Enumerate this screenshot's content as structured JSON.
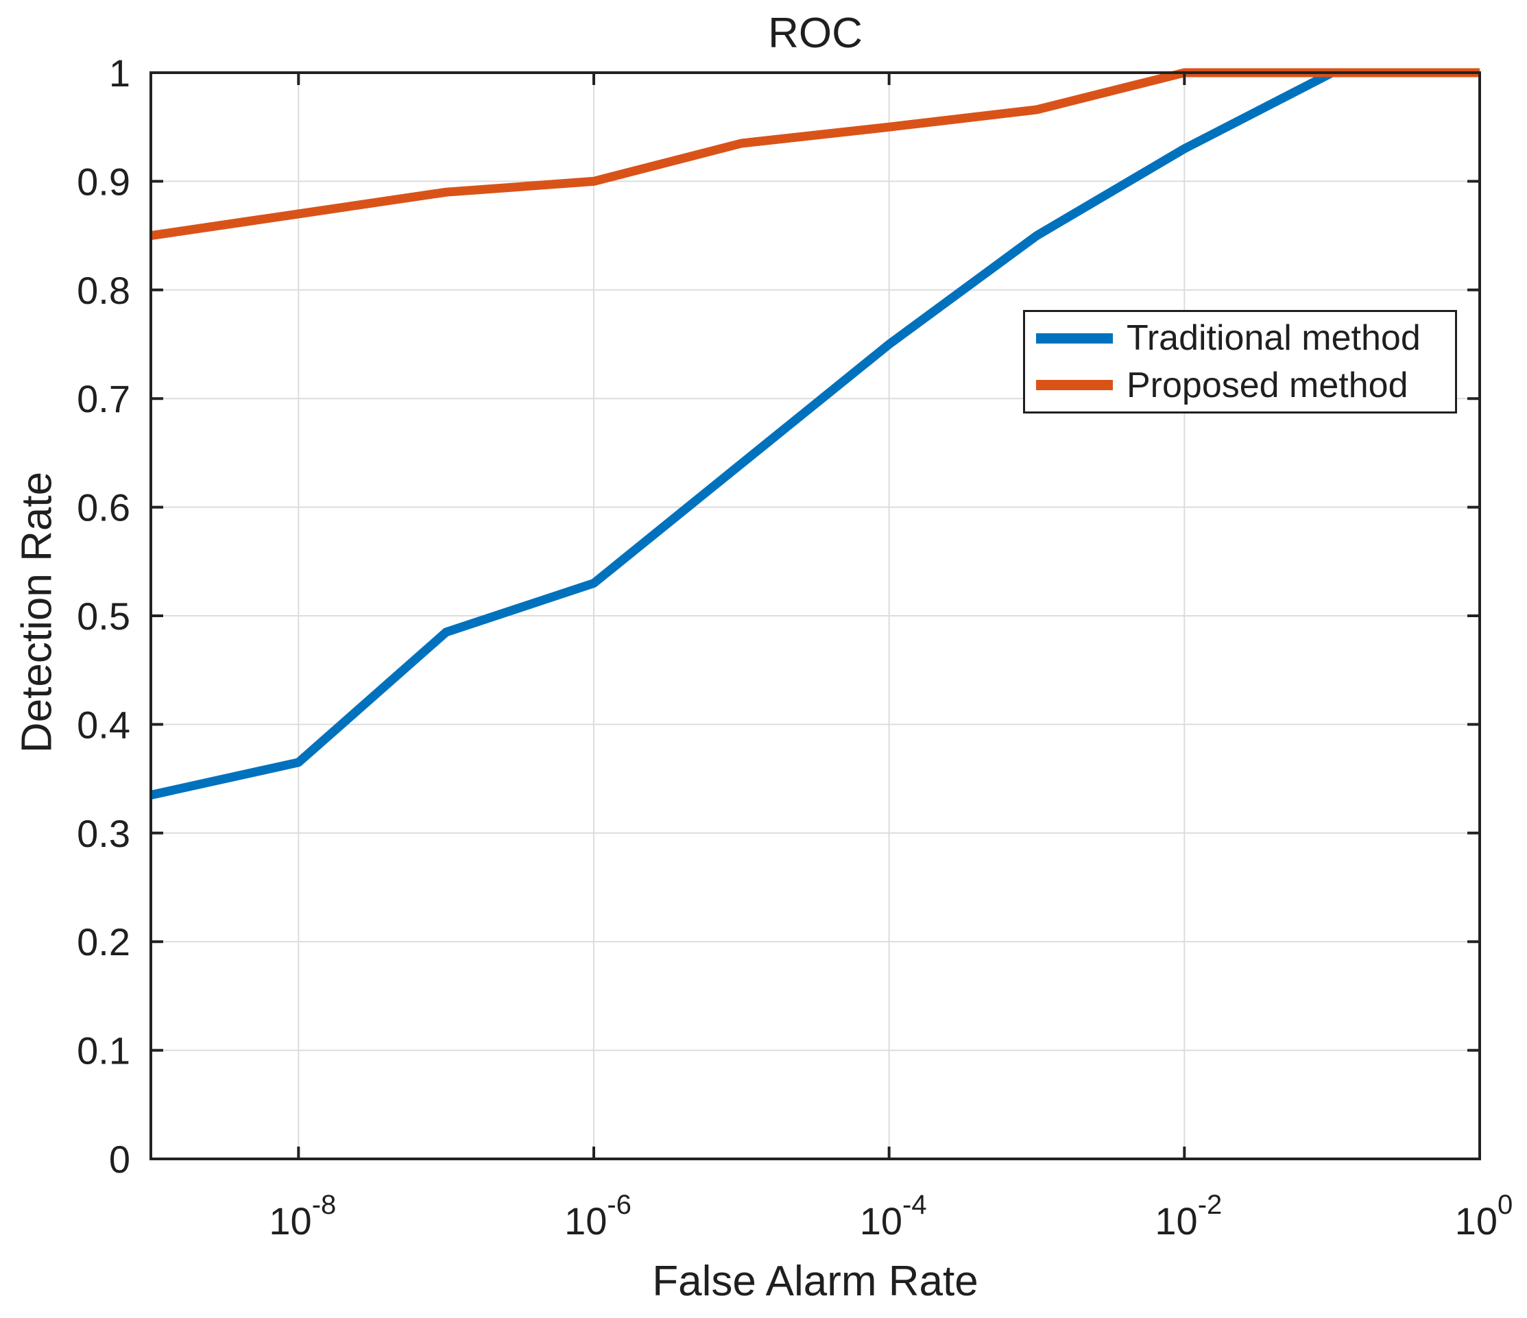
{
  "title": "ROC",
  "axes": {
    "xlabel": "False Alarm Rate",
    "ylabel": "Detection Rate",
    "yticks": [
      {
        "value": 0.0,
        "label": "0"
      },
      {
        "value": 0.1,
        "label": "0.1"
      },
      {
        "value": 0.2,
        "label": "0.2"
      },
      {
        "value": 0.3,
        "label": "0.3"
      },
      {
        "value": 0.4,
        "label": "0.4"
      },
      {
        "value": 0.5,
        "label": "0.5"
      },
      {
        "value": 0.6,
        "label": "0.6"
      },
      {
        "value": 0.7,
        "label": "0.7"
      },
      {
        "value": 0.8,
        "label": "0.8"
      },
      {
        "value": 0.9,
        "label": "0.9"
      },
      {
        "value": 1.0,
        "label": "1"
      }
    ],
    "xticks": [
      {
        "log10": -8,
        "base": "10",
        "exponent": "-8"
      },
      {
        "log10": -6,
        "base": "10",
        "exponent": "-6"
      },
      {
        "log10": -4,
        "base": "10",
        "exponent": "-4"
      },
      {
        "log10": -2,
        "base": "10",
        "exponent": "-2"
      },
      {
        "log10": 0,
        "base": "10",
        "exponent": "0"
      }
    ]
  },
  "legend": {
    "entries": [
      {
        "label": "Traditional method",
        "color": "#0072BD"
      },
      {
        "label": "Proposed method",
        "color": "#D95319"
      }
    ]
  },
  "colors": {
    "traditional_blue": "#0072BD",
    "proposed_orange": "#D95319",
    "grid": "#dcdcdc",
    "axis": "#222222"
  },
  "chart_data": {
    "type": "line",
    "title": "ROC",
    "xlabel": "False Alarm Rate",
    "ylabel": "Detection Rate",
    "x_scale": "log10",
    "xlim_log10": [
      -9,
      0
    ],
    "ylim": [
      0,
      1
    ],
    "grid": true,
    "legend_position": "middle-right",
    "x_log10": [
      -9,
      -8,
      -7,
      -6,
      -5,
      -4,
      -3,
      -2,
      -1,
      0
    ],
    "series": [
      {
        "name": "Traditional method",
        "color": "#0072BD",
        "values": [
          0.335,
          0.365,
          0.485,
          0.53,
          0.64,
          0.75,
          0.85,
          0.93,
          1.0,
          1.0
        ]
      },
      {
        "name": "Proposed method",
        "color": "#D95319",
        "values": [
          0.85,
          0.87,
          0.89,
          0.9,
          0.935,
          0.95,
          0.966,
          1.0,
          1.0,
          1.0
        ]
      }
    ]
  }
}
